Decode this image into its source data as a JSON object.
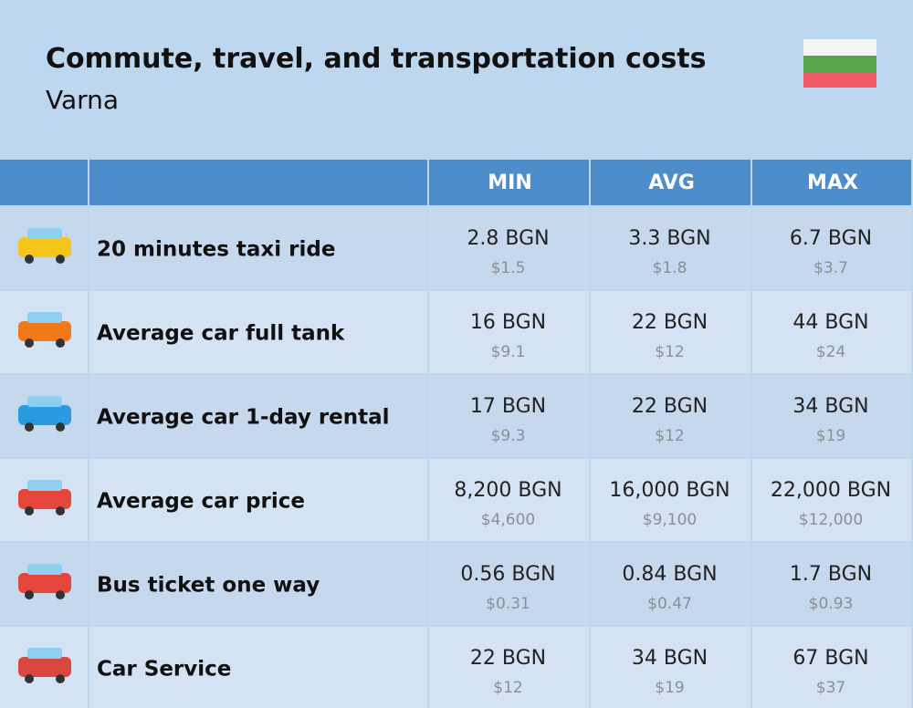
{
  "header": {
    "title": "Commute, travel, and transportation costs",
    "subtitle": "Varna"
  },
  "table": {
    "columns": [
      "MIN",
      "AVG",
      "MAX"
    ],
    "rows": [
      {
        "label": "20 minutes taxi ride",
        "cells": [
          [
            "2.8 BGN",
            "$1.5"
          ],
          [
            "3.3 BGN",
            "$1.8"
          ],
          [
            "6.7 BGN",
            "$3.7"
          ]
        ]
      },
      {
        "label": "Average car full tank",
        "cells": [
          [
            "16 BGN",
            "$9.1"
          ],
          [
            "22 BGN",
            "$12"
          ],
          [
            "44 BGN",
            "$24"
          ]
        ]
      },
      {
        "label": "Average car 1-day rental",
        "cells": [
          [
            "17 BGN",
            "$9.3"
          ],
          [
            "22 BGN",
            "$12"
          ],
          [
            "34 BGN",
            "$19"
          ]
        ]
      },
      {
        "label": "Average car price",
        "cells": [
          [
            "8,200 BGN",
            "$4,600"
          ],
          [
            "16,000 BGN",
            "$9,100"
          ],
          [
            "22,000 BGN",
            "$12,000"
          ]
        ]
      },
      {
        "label": "Bus ticket one way",
        "cells": [
          [
            "0.56 BGN",
            "$0.31"
          ],
          [
            "0.84 BGN",
            "$0.47"
          ],
          [
            "1.7 BGN",
            "$0.93"
          ]
        ]
      },
      {
        "label": "Car Service",
        "cells": [
          [
            "22 BGN",
            "$12"
          ],
          [
            "34 BGN",
            "$19"
          ],
          [
            "67 BGN",
            "$37"
          ]
        ]
      }
    ]
  }
}
